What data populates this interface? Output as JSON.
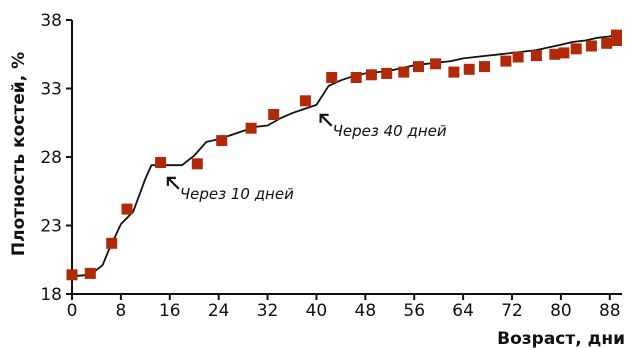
{
  "chart_data": {
    "type": "line",
    "xlabel": "Возраст, дни",
    "ylabel": "Плотность костей, %",
    "xlim": [
      0,
      90
    ],
    "ylim": [
      18,
      38
    ],
    "x_ticks": [
      0,
      8,
      16,
      24,
      32,
      40,
      48,
      56,
      64,
      72,
      80,
      88
    ],
    "x_tick_labels": [
      "0",
      "8",
      "16",
      "24",
      "32",
      "40",
      "48",
      "56",
      "64",
      "72",
      "80",
      "88"
    ],
    "y_ticks": [
      18,
      23,
      28,
      33,
      38
    ],
    "y_tick_labels": [
      "18",
      "23",
      "28",
      "33",
      "38"
    ],
    "grid": false,
    "colors": {
      "marker": "#b02a0a",
      "line": "#111111"
    },
    "line_x": [
      0,
      3,
      5,
      6,
      8,
      10,
      12,
      13,
      14,
      16,
      18,
      20,
      22,
      24,
      26,
      28,
      30,
      32,
      34,
      36,
      38,
      40,
      42,
      44,
      46,
      48,
      50,
      52,
      54,
      56,
      58,
      60,
      62,
      64,
      66,
      68,
      70,
      72,
      74,
      76,
      78,
      80,
      82,
      84,
      86,
      88,
      90
    ],
    "line_y": [
      19.3,
      19.4,
      20.1,
      21.2,
      23.1,
      24.0,
      26.4,
      27.4,
      27.4,
      27.4,
      27.4,
      28.1,
      29.1,
      29.3,
      29.6,
      29.9,
      30.2,
      30.3,
      30.8,
      31.2,
      31.5,
      31.8,
      33.2,
      33.6,
      33.9,
      34.1,
      34.2,
      34.3,
      34.5,
      34.7,
      34.8,
      34.9,
      35.0,
      35.2,
      35.3,
      35.4,
      35.5,
      35.6,
      35.7,
      35.8,
      36.0,
      36.2,
      36.4,
      36.5,
      36.7,
      36.8,
      37.0
    ],
    "markers_x": [
      0,
      3,
      6.5,
      9,
      14.5,
      20.5,
      24.5,
      29.3,
      33,
      38.2,
      42.5,
      46.5,
      49,
      51.5,
      54.3,
      56.7,
      59.5,
      62.5,
      65,
      67.5,
      71,
      73,
      76,
      79,
      80.5,
      82.5,
      85,
      87.5,
      89.3,
      91,
      92.5
    ],
    "markers_y": [
      19.4,
      19.5,
      21.7,
      24.2,
      27.6,
      27.5,
      29.2,
      30.1,
      31.1,
      32.1,
      33.8,
      33.8,
      34.0,
      34.1,
      34.2,
      34.6,
      34.8,
      34.2,
      34.4,
      34.6,
      35.0,
      35.3,
      35.4,
      35.5,
      35.6,
      35.9,
      36.1,
      36.3,
      36.5,
      36.8,
      36.9
    ],
    "annotations": [
      {
        "label": "Через 10 дней",
        "x": 16.5,
        "y": 27.5
      },
      {
        "label": "Через 40 дней",
        "x": 41.5,
        "y": 32.1
      }
    ]
  }
}
